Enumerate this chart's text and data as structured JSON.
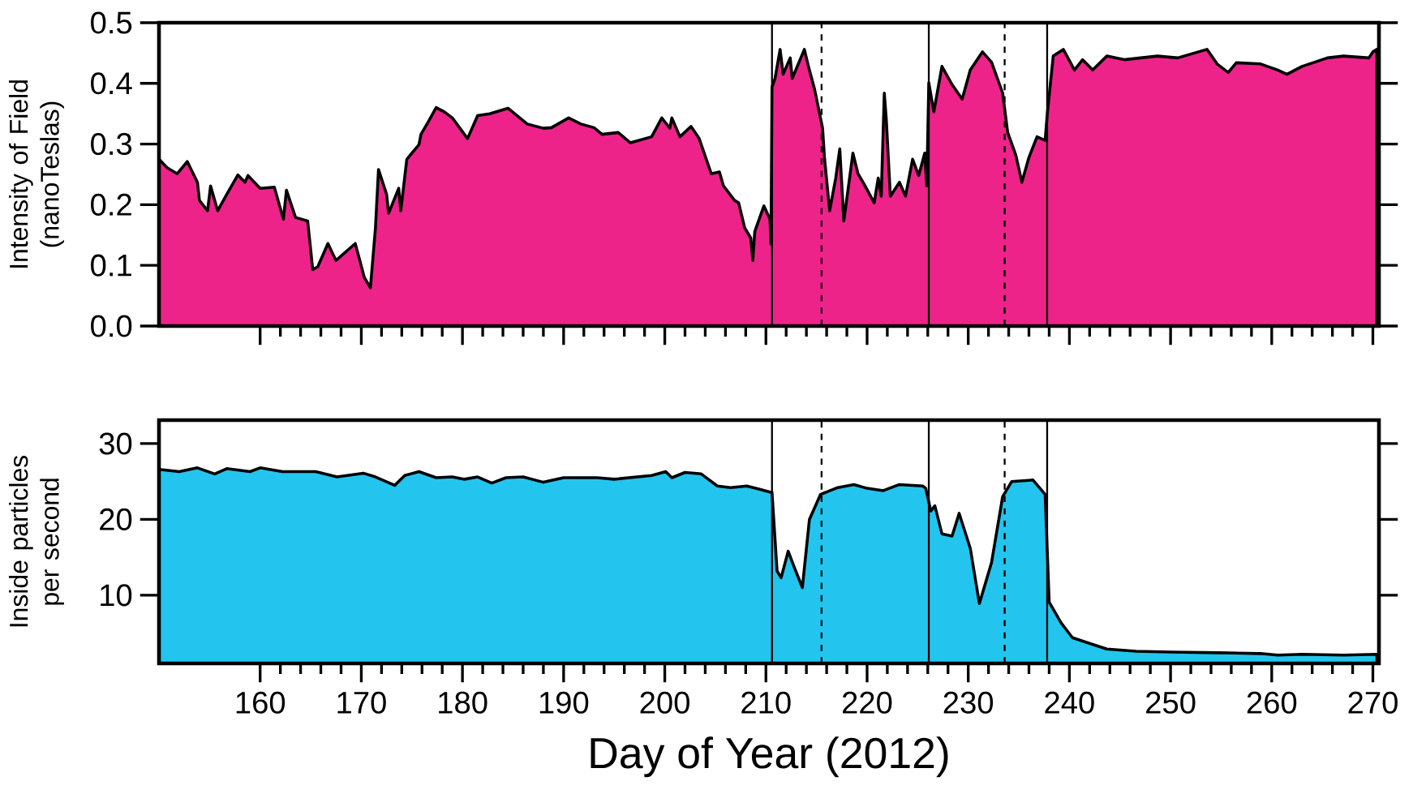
{
  "chart_data": [
    {
      "type": "area",
      "ylabel": "Intensity of Field (nanoTeslas)",
      "xlim": [
        150,
        270.6
      ],
      "ylim": [
        0,
        0.5
      ],
      "tick_labels": "y",
      "xticks": [
        160,
        170,
        180,
        190,
        200,
        210,
        220,
        230,
        240,
        250,
        260,
        270
      ],
      "yticks": [
        {
          "value": 0,
          "label": "0.0"
        },
        {
          "value": 0.1,
          "label": "0.1"
        },
        {
          "value": 0.2,
          "label": "0.2"
        },
        {
          "value": 0.3,
          "label": "0.3"
        },
        {
          "value": 0.4,
          "label": "0.4"
        },
        {
          "value": 0.5,
          "label": "0.5"
        }
      ],
      "series": [
        {
          "color": "#ee238a",
          "x": [
            150,
            150.8,
            151.8,
            152.8,
            153.8,
            154,
            154.8,
            155.1,
            155.8,
            156.7,
            157.8,
            158.5,
            158.8,
            160,
            161.4,
            162.3,
            162.6,
            163.5,
            164.7,
            165.2,
            165.7,
            166.7,
            167.5,
            169.4,
            170.3,
            170.9,
            171.4,
            171.7,
            172.5,
            172.7,
            173.7,
            173.9,
            174.5,
            175.7,
            175.9,
            176.6,
            177.4,
            178.2,
            179,
            180.5,
            181.5,
            182.7,
            184.5,
            186.4,
            188,
            188.8,
            190.5,
            191.7,
            193,
            193.8,
            195.4,
            196.6,
            198.7,
            199.7,
            200.5,
            200.7,
            201.5,
            202.6,
            203.4,
            204.6,
            205.4,
            205.8,
            206.9,
            207.3,
            207.9,
            208.5,
            208.7,
            208.9,
            209.8,
            210.4,
            210.5,
            210.6,
            210.9,
            211.4,
            211.7,
            212.4,
            212.6,
            213.8,
            214.2,
            214.8,
            215.6,
            215.8,
            216.3,
            216.9,
            217.3,
            217.7,
            218.6,
            219.1,
            219.7,
            220.7,
            221.1,
            221.4,
            221.7,
            221.9,
            222.3,
            223.2,
            223.8,
            224.5,
            225.1,
            225.7,
            225.9,
            226.1,
            226.6,
            227.4,
            228.4,
            229.4,
            230.2,
            231.4,
            232.3,
            233.4,
            233.9,
            234.7,
            235.3,
            236,
            236.8,
            237.6,
            237.8,
            238.4,
            239.4,
            240.5,
            241.3,
            242.3,
            243.7,
            245.4,
            248.7,
            250.7,
            253.6,
            254.6,
            255.7,
            256.5,
            258.9,
            260.6,
            261.5,
            263,
            265.5,
            267.1,
            269.6,
            270,
            270.4
          ],
          "values": [
            0.275,
            0.261,
            0.251,
            0.271,
            0.237,
            0.207,
            0.19,
            0.231,
            0.19,
            0.217,
            0.249,
            0.237,
            0.248,
            0.227,
            0.229,
            0.176,
            0.224,
            0.179,
            0.173,
            0.093,
            0.098,
            0.136,
            0.108,
            0.136,
            0.08,
            0.063,
            0.162,
            0.258,
            0.217,
            0.186,
            0.227,
            0.19,
            0.275,
            0.299,
            0.316,
            0.336,
            0.36,
            0.353,
            0.343,
            0.309,
            0.347,
            0.35,
            0.359,
            0.333,
            0.326,
            0.327,
            0.343,
            0.333,
            0.327,
            0.316,
            0.319,
            0.302,
            0.312,
            0.343,
            0.326,
            0.343,
            0.312,
            0.329,
            0.309,
            0.251,
            0.254,
            0.231,
            0.207,
            0.203,
            0.162,
            0.145,
            0.108,
            0.156,
            0.198,
            0.176,
            0.135,
            0.394,
            0.408,
            0.456,
            0.415,
            0.442,
            0.408,
            0.456,
            0.428,
            0.391,
            0.326,
            0.275,
            0.19,
            0.244,
            0.292,
            0.173,
            0.285,
            0.251,
            0.234,
            0.203,
            0.244,
            0.214,
            0.384,
            0.34,
            0.214,
            0.237,
            0.214,
            0.275,
            0.248,
            0.285,
            0.231,
            0.401,
            0.353,
            0.428,
            0.398,
            0.374,
            0.422,
            0.452,
            0.435,
            0.384,
            0.319,
            0.282,
            0.237,
            0.278,
            0.312,
            0.306,
            0.347,
            0.445,
            0.456,
            0.422,
            0.439,
            0.422,
            0.445,
            0.439,
            0.445,
            0.442,
            0.456,
            0.432,
            0.418,
            0.434,
            0.432,
            0.422,
            0.415,
            0.428,
            0.442,
            0.445,
            0.442,
            0.452,
            0.456
          ]
        }
      ],
      "ref_lines": [
        {
          "axis": "x",
          "value": 210.6,
          "line_style": "solid"
        },
        {
          "axis": "x",
          "value": 215.5,
          "line_style": "dashed"
        },
        {
          "axis": "x",
          "value": 226.1,
          "line_style": "solid"
        },
        {
          "axis": "x",
          "value": 233.6,
          "line_style": "dashed"
        },
        {
          "axis": "x",
          "value": 237.8,
          "line_style": "solid"
        }
      ]
    },
    {
      "type": "area",
      "ylabel": "Inside particles per second",
      "xlabel": "Day of Year (2012)",
      "xlim": [
        150,
        270.6
      ],
      "ylim": [
        1,
        33.1
      ],
      "xticks": [
        160,
        170,
        180,
        190,
        200,
        210,
        220,
        230,
        240,
        250,
        260,
        270
      ],
      "yticks": [
        10,
        20,
        30
      ],
      "series": [
        {
          "color": "#23c5ee",
          "x": [
            150,
            152,
            153.8,
            155.5,
            156.7,
            159,
            160,
            162.2,
            165.5,
            167.6,
            170.2,
            171.4,
            173.3,
            174.3,
            175.7,
            177.4,
            179,
            180.2,
            181.5,
            182.9,
            184.3,
            186,
            188,
            190,
            193.3,
            195,
            198.7,
            200.1,
            200.7,
            202,
            203.6,
            205.2,
            206.5,
            208.1,
            209.3,
            210.4,
            210.6,
            211.1,
            211.5,
            212.2,
            212.8,
            213.6,
            214.3,
            215.4,
            217.1,
            218.7,
            220,
            221.6,
            223.2,
            225.5,
            225.8,
            226.3,
            226.7,
            227.4,
            228.4,
            229.1,
            230.2,
            231.1,
            232.3,
            233.4,
            234.3,
            236.4,
            237.6,
            238,
            239.2,
            240.3,
            242.1,
            243.7,
            246.6,
            250.1,
            254.8,
            258.9,
            260.6,
            263,
            267.1,
            270.4
          ],
          "values": [
            26.6,
            26.3,
            26.8,
            26.0,
            26.7,
            26.3,
            26.8,
            26.3,
            26.3,
            25.6,
            26.1,
            25.6,
            24.5,
            25.8,
            26.3,
            25.5,
            25.6,
            25.3,
            25.6,
            24.8,
            25.5,
            25.6,
            24.9,
            25.5,
            25.5,
            25.3,
            25.8,
            26.3,
            25.5,
            26.2,
            26.0,
            24.4,
            24.2,
            24.4,
            24.0,
            23.6,
            23.6,
            13.2,
            12.3,
            15.8,
            13.7,
            11.0,
            20.0,
            23.3,
            24.2,
            24.6,
            24.1,
            23.8,
            24.6,
            24.4,
            24.1,
            21.1,
            21.8,
            18.1,
            17.8,
            20.8,
            16.2,
            8.9,
            14.3,
            23.0,
            25.0,
            25.2,
            23.3,
            9.1,
            6.3,
            4.4,
            3.6,
            2.9,
            2.6,
            2.5,
            2.4,
            2.3,
            2.1,
            2.2,
            2.1,
            2.2
          ]
        }
      ],
      "ref_lines": [
        {
          "axis": "x",
          "value": 210.6,
          "line_style": "solid"
        },
        {
          "axis": "x",
          "value": 215.5,
          "line_style": "dashed"
        },
        {
          "axis": "x",
          "value": 226.1,
          "line_style": "solid"
        },
        {
          "axis": "x",
          "value": 233.6,
          "line_style": "dashed"
        },
        {
          "axis": "x",
          "value": 237.8,
          "line_style": "solid"
        }
      ]
    }
  ]
}
